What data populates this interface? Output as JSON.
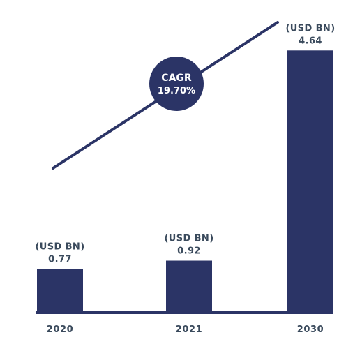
{
  "chart_data": {
    "type": "bar",
    "categories": [
      "2020",
      "2021",
      "2030"
    ],
    "values": [
      0.77,
      0.92,
      4.64
    ],
    "value_unit": "(USD BN)",
    "value_labels": [
      "0.77",
      "0.92",
      "4.64"
    ],
    "title": "",
    "xlabel": "",
    "ylabel": "",
    "ylim": [
      0,
      4.94
    ],
    "grid": false,
    "trend_arrow": true,
    "cagr": {
      "label": "CAGR",
      "value": "19.70%"
    },
    "colors": {
      "bar": "#2b3466",
      "axis": "#2b3466",
      "trend": "#2b3466",
      "badge": "#2b3466",
      "text": "#3a4a5c"
    }
  }
}
